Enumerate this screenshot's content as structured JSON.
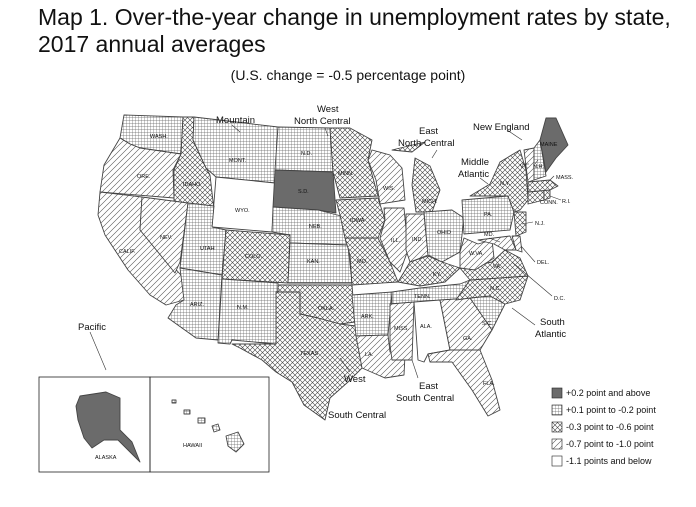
{
  "title_line1": "Map 1. Over-the-year change in unemployment rates by state,",
  "title_line2": "2017 annual averages",
  "subtitle": "(U.S. change = -0.5 percentage point)",
  "regions": {
    "mountain": "Mountain",
    "west_north_central_1": "West",
    "west_north_central_2": "North Central",
    "east_north_central_1": "East",
    "east_north_central_2": "North Central",
    "new_england": "New England",
    "middle_atlantic_1": "Middle",
    "middle_atlantic_2": "Atlantic",
    "pacific": "Pacific",
    "south_atlantic_1": "South",
    "south_atlantic_2": "Atlantic",
    "east_south_central_1": "East",
    "east_south_central_2": "South Central",
    "west_south_central_1": "West",
    "west_south_central_2": "South Central"
  },
  "states": {
    "wash": "WASH.",
    "ore": "ORE.",
    "calif": "CALIF.",
    "idaho": "IDAHO",
    "nev": "NEV.",
    "mont": "MONT.",
    "wyo": "WYO.",
    "utah": "UTAH",
    "colo": "COLO.",
    "ariz": "ARIZ.",
    "nm": "N.M.",
    "nd": "N.D.",
    "sd": "S.D.",
    "neb": "NEB.",
    "kan": "KAN.",
    "okla": "OKLA.",
    "texas": "TEXAS",
    "minn": "MINN.",
    "iowa": "IOWA",
    "mo": "MO.",
    "ark": "ARK.",
    "la": "LA.",
    "wis": "WIS.",
    "mich": "MICH.",
    "ill": "ILL.",
    "ind": "IND.",
    "ohio": "OHIO",
    "ky": "KY.",
    "tenn": "TENN.",
    "miss": "MISS.",
    "ala": "ALA.",
    "ga": "GA.",
    "fla": "FLA.",
    "sc": "S.C.",
    "nc": "N.C.",
    "va": "VA.",
    "wva": "W.VA.",
    "md": "MD.",
    "del": "DEL.",
    "dc": "D.C.",
    "pa": "PA.",
    "ny": "N.Y.",
    "nj": "N.J.",
    "conn": "CONN.",
    "ri": "R.I.",
    "mass": "MASS.",
    "vt": "VT.",
    "nh": "N.H.",
    "maine": "MAINE",
    "alaska": "ALASKA",
    "hawaii": "HAWAII"
  },
  "legend": [
    {
      "label": "+0.2 point and above",
      "pattern": "solid-dark"
    },
    {
      "label": "+0.1 point to -0.2 point",
      "pattern": "grid"
    },
    {
      "label": "-0.3 point to -0.6 point",
      "pattern": "crosshatch"
    },
    {
      "label": "-0.7 point to -1.0 point",
      "pattern": "diagonal"
    },
    {
      "label": "-1.1 points and below",
      "pattern": "white"
    }
  ],
  "colors": {
    "dark": "#6b6b6b",
    "line": "#444444"
  }
}
